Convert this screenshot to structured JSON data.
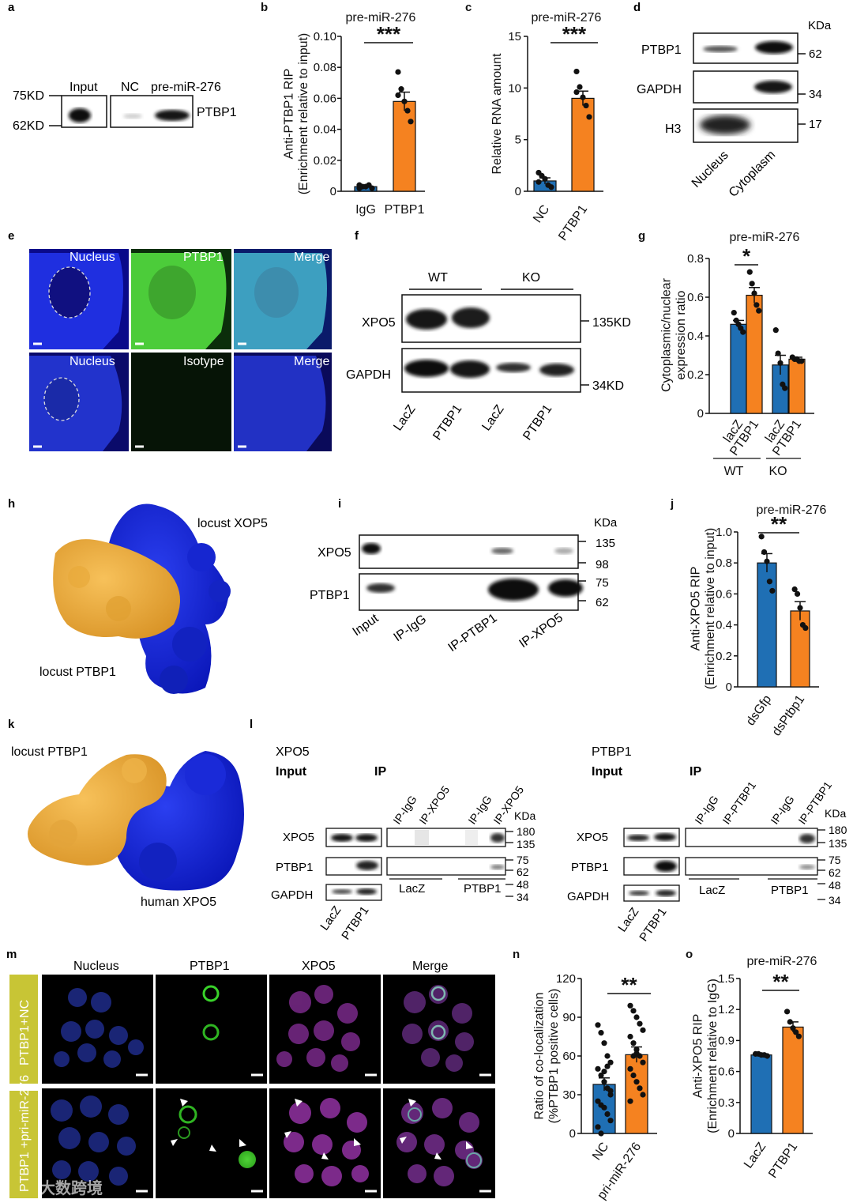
{
  "panels": {
    "a": {
      "letter": "a",
      "markers": [
        "75KD",
        "62KD"
      ],
      "lanes": [
        "Input",
        "NC",
        "pre-miR-276"
      ],
      "protein": "PTBP1"
    },
    "d": {
      "letter": "d",
      "kda": "KDa",
      "rows": [
        "PTBP1",
        "GAPDH",
        "H3"
      ],
      "markers": [
        "62",
        "34",
        "17"
      ],
      "lanes": [
        "Nucleus",
        "Cytoplasm"
      ]
    },
    "e": {
      "letter": "e",
      "top": [
        "Nucleus",
        "PTBP1",
        "Merge"
      ],
      "bottom": [
        "Nucleus",
        "Isotype",
        "Merge"
      ]
    },
    "f": {
      "letter": "f",
      "groups": [
        "WT",
        "KO"
      ],
      "rows": [
        "XPO5",
        "GAPDH"
      ],
      "markers": [
        "135KD",
        "34KD"
      ],
      "lanes": [
        "LacZ",
        "PTBP1",
        "LacZ",
        "PTBP1"
      ]
    },
    "h": {
      "letter": "h",
      "label1": "locust XOP5",
      "label2": "locust PTBP1"
    },
    "i": {
      "letter": "i",
      "kda": "KDa",
      "rows": [
        "XPO5",
        "PTBP1"
      ],
      "markers": [
        "135",
        "98",
        "75",
        "62"
      ],
      "lanes": [
        "Input",
        "IP-IgG",
        "IP-PTBP1",
        "IP-XPO5"
      ]
    },
    "k": {
      "letter": "k",
      "label1": "locust PTBP1",
      "label2": "human XPO5"
    },
    "l": {
      "letter": "l",
      "left": {
        "title": "XPO5",
        "input": "Input",
        "ip": "IP",
        "cols": [
          "IP-IgG",
          "IP-XPO5",
          "IP-IgG",
          "IP-XPO5"
        ]
      },
      "right": {
        "title": "PTBP1",
        "input": "Input",
        "ip": "IP",
        "cols": [
          "IP-IgG",
          "IP-PTBP1",
          "IP-IgG",
          "IP-PTBP1"
        ]
      },
      "kda": "KDa",
      "rows": [
        "XPO5",
        "PTBP1",
        "GAPDH"
      ],
      "markers": [
        "180",
        "135",
        "75",
        "62",
        "48",
        "34"
      ],
      "groups": [
        "LacZ",
        "PTBP1"
      ],
      "lanes": [
        "LacZ",
        "PTBP1"
      ]
    },
    "m": {
      "letter": "m",
      "cols": [
        "Nucleus",
        "PTBP1",
        "XPO5",
        "Merge"
      ],
      "rows": [
        "PTBP1+NC",
        "PTBP1 +pri-miR-276"
      ]
    }
  },
  "watermark": "大数跨境",
  "chart_data": [
    {
      "panel": "b",
      "type": "bar",
      "title": "pre-miR-276",
      "ylabel": "Anti-PTBP1 RIP\n(Enrichment relative to input)",
      "categories": [
        "IgG",
        "PTBP1"
      ],
      "values": [
        0.003,
        0.058
      ],
      "errors": [
        0.0005,
        0.006
      ],
      "points": [
        [
          0.002,
          0.003,
          0.003,
          0.004,
          0.002,
          0.004
        ],
        [
          0.077,
          0.066,
          0.058,
          0.052,
          0.045,
          0.062
        ]
      ],
      "ylim": [
        0,
        0.1
      ],
      "yticks": [
        "0",
        "0.02",
        "0.04",
        "0.06",
        "0.08",
        "0.10"
      ],
      "ytick_values": [
        0,
        0.02,
        0.04,
        0.06,
        0.08,
        0.1
      ],
      "significance": "***",
      "colors": [
        "#1f6fb4",
        "#f58220"
      ]
    },
    {
      "panel": "c",
      "type": "bar",
      "title": "pre-miR-276",
      "ylabel": "Relative RNA amount",
      "categories": [
        "NC",
        "PTBP1"
      ],
      "values": [
        1.0,
        9.0
      ],
      "errors": [
        0.3,
        0.7
      ],
      "points": [
        [
          1.8,
          1.5,
          1.2,
          0.6,
          0.4,
          0.9
        ],
        [
          11.6,
          10.1,
          9.1,
          8.3,
          7.2,
          9.6
        ]
      ],
      "ylim": [
        0,
        15
      ],
      "yticks": [
        "0",
        "5",
        "10",
        "15"
      ],
      "ytick_values": [
        0,
        5,
        10,
        15
      ],
      "significance": "***",
      "colors": [
        "#1f6fb4",
        "#f58220"
      ]
    },
    {
      "panel": "g",
      "type": "bar",
      "title": "pre-miR-276",
      "ylabel": "Cytoplasmic/nuclear\nexpression ratio",
      "categories": [
        "lacZ",
        "PTBP1",
        "lacZ",
        "PTBP1"
      ],
      "groups": [
        "WT",
        "KO"
      ],
      "values": [
        0.46,
        0.61,
        0.25,
        0.28
      ],
      "errors": [
        0.02,
        0.04,
        0.05,
        0.01
      ],
      "points": [
        [
          0.52,
          0.48,
          0.46,
          0.44,
          0.42
        ],
        [
          0.73,
          0.67,
          0.62,
          0.56,
          0.53
        ],
        [
          0.43,
          0.31,
          0.26,
          0.15,
          0.13
        ],
        [
          0.29,
          0.28,
          0.28,
          0.27,
          0.27
        ]
      ],
      "ylim": [
        0,
        0.8
      ],
      "yticks": [
        "0",
        "0.2",
        "0.4",
        "0.6",
        "0.8"
      ],
      "ytick_values": [
        0,
        0.2,
        0.4,
        0.6,
        0.8
      ],
      "significance": "*",
      "colors": [
        "#1f6fb4",
        "#f58220",
        "#1f6fb4",
        "#f58220"
      ]
    },
    {
      "panel": "j",
      "type": "bar",
      "title": "pre-miR-276",
      "ylabel": "Anti-XPO5 RIP\n(Enrichment relative to input)",
      "categories": [
        "dsGfp",
        "dsPtbp1"
      ],
      "values": [
        0.8,
        0.49
      ],
      "errors": [
        0.06,
        0.06
      ],
      "points": [
        [
          0.97,
          0.87,
          0.81,
          0.68,
          0.62
        ],
        [
          0.63,
          0.6,
          0.51,
          0.4,
          0.38
        ]
      ],
      "ylim": [
        0,
        1.0
      ],
      "yticks": [
        "0",
        "0.2",
        "0.4",
        "0.6",
        "0.8",
        "1.0"
      ],
      "ytick_values": [
        0,
        0.2,
        0.4,
        0.6,
        0.8,
        1.0
      ],
      "significance": "**",
      "colors": [
        "#1f6fb4",
        "#f58220"
      ]
    },
    {
      "panel": "n",
      "type": "bar",
      "title": "",
      "ylabel": "Ratio of co-localization\n(%PTBP1 positive cells)",
      "categories": [
        "NC",
        "pri-miR-276"
      ],
      "values": [
        38,
        61
      ],
      "errors": [
        5,
        6
      ],
      "points": [
        [
          84,
          78,
          70,
          60,
          55,
          50,
          45,
          40,
          35,
          30,
          25,
          22,
          20,
          15,
          10,
          5,
          0,
          48,
          52,
          33
        ],
        [
          99,
          95,
          90,
          85,
          80,
          75,
          70,
          65,
          60,
          55,
          50,
          45,
          40,
          35,
          30,
          25,
          60,
          62
        ]
      ],
      "ylim": [
        0,
        120
      ],
      "yticks": [
        "0",
        "30",
        "60",
        "90",
        "120"
      ],
      "ytick_values": [
        0,
        30,
        60,
        90,
        120
      ],
      "significance": "**",
      "colors": [
        "#1f6fb4",
        "#f58220"
      ]
    },
    {
      "panel": "o",
      "type": "bar",
      "title": "pre-miR-276",
      "ylabel": "Anti-XPO5 RIP\n(Enrichment relative to IgG)",
      "categories": [
        "LacZ",
        "PTBP1"
      ],
      "values": [
        0.76,
        1.03
      ],
      "errors": [
        0.01,
        0.05
      ],
      "points": [
        [
          0.77,
          0.77,
          0.76,
          0.76,
          0.75
        ],
        [
          1.18,
          1.08,
          1.02,
          0.98,
          0.94
        ]
      ],
      "ylim": [
        0,
        1.5
      ],
      "yticks": [
        "0",
        "0.3",
        "0.6",
        "0.9",
        "1.2",
        "1.5"
      ],
      "ytick_values": [
        0,
        0.3,
        0.6,
        0.9,
        1.2,
        1.5
      ],
      "significance": "**",
      "colors": [
        "#1f6fb4",
        "#f58220"
      ]
    }
  ]
}
